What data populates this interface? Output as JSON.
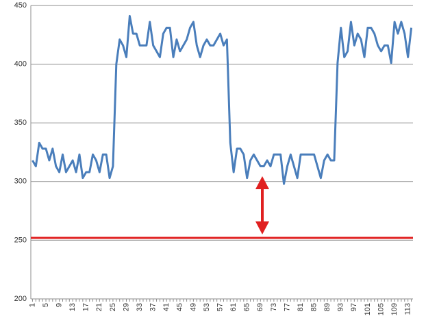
{
  "chart_data": {
    "type": "line",
    "categories": [
      1,
      null,
      null,
      null,
      5,
      null,
      null,
      null,
      9,
      null,
      null,
      null,
      13,
      null,
      null,
      null,
      17,
      null,
      null,
      null,
      21,
      null,
      null,
      null,
      25,
      null,
      null,
      null,
      29,
      null,
      null,
      null,
      33,
      null,
      null,
      null,
      37,
      null,
      null,
      null,
      41,
      null,
      null,
      null,
      45,
      null,
      null,
      null,
      49,
      null,
      null,
      null,
      53,
      null,
      null,
      null,
      57,
      null,
      null,
      null,
      61,
      null,
      null,
      null,
      65,
      null,
      null,
      null,
      69,
      null,
      null,
      null,
      73,
      null,
      null,
      null,
      77,
      null,
      null,
      null,
      81,
      null,
      null,
      null,
      85,
      null,
      null,
      null,
      89,
      null,
      null,
      null,
      93,
      null,
      null,
      null,
      97,
      null,
      null,
      null,
      101,
      null,
      null,
      null,
      105,
      null,
      null,
      null,
      109,
      null,
      null,
      null,
      113,
      null
    ],
    "series": [
      {
        "color": "#4a7ebb",
        "values": [
          318,
          313,
          333,
          328,
          328,
          318,
          328,
          313,
          308,
          323,
          308,
          313,
          318,
          308,
          323,
          303,
          308,
          308,
          323,
          318,
          308,
          323,
          323,
          303,
          313,
          400,
          421,
          416,
          406,
          441,
          426,
          426,
          416,
          416,
          416,
          436,
          416,
          411,
          406,
          426,
          431,
          431,
          406,
          421,
          411,
          416,
          421,
          431,
          436,
          416,
          406,
          416,
          421,
          416,
          416,
          421,
          426,
          416,
          421,
          333,
          308,
          328,
          328,
          323,
          303,
          318,
          323,
          318,
          313,
          313,
          318,
          313,
          323,
          323,
          323,
          298,
          313,
          323,
          313,
          303,
          323,
          323,
          323,
          323,
          323,
          313,
          303,
          318,
          323,
          318,
          318,
          401,
          431,
          406,
          411,
          436,
          416,
          426,
          421,
          406,
          431,
          431,
          426,
          416,
          411,
          416,
          416,
          401,
          436,
          426,
          436,
          426,
          406,
          431
        ]
      }
    ],
    "reference_line": {
      "value": 252,
      "color": "#e02020"
    },
    "ylim": [
      200,
      450
    ],
    "yticks": [
      200,
      250,
      300,
      350,
      400,
      450
    ],
    "grid": true
  }
}
